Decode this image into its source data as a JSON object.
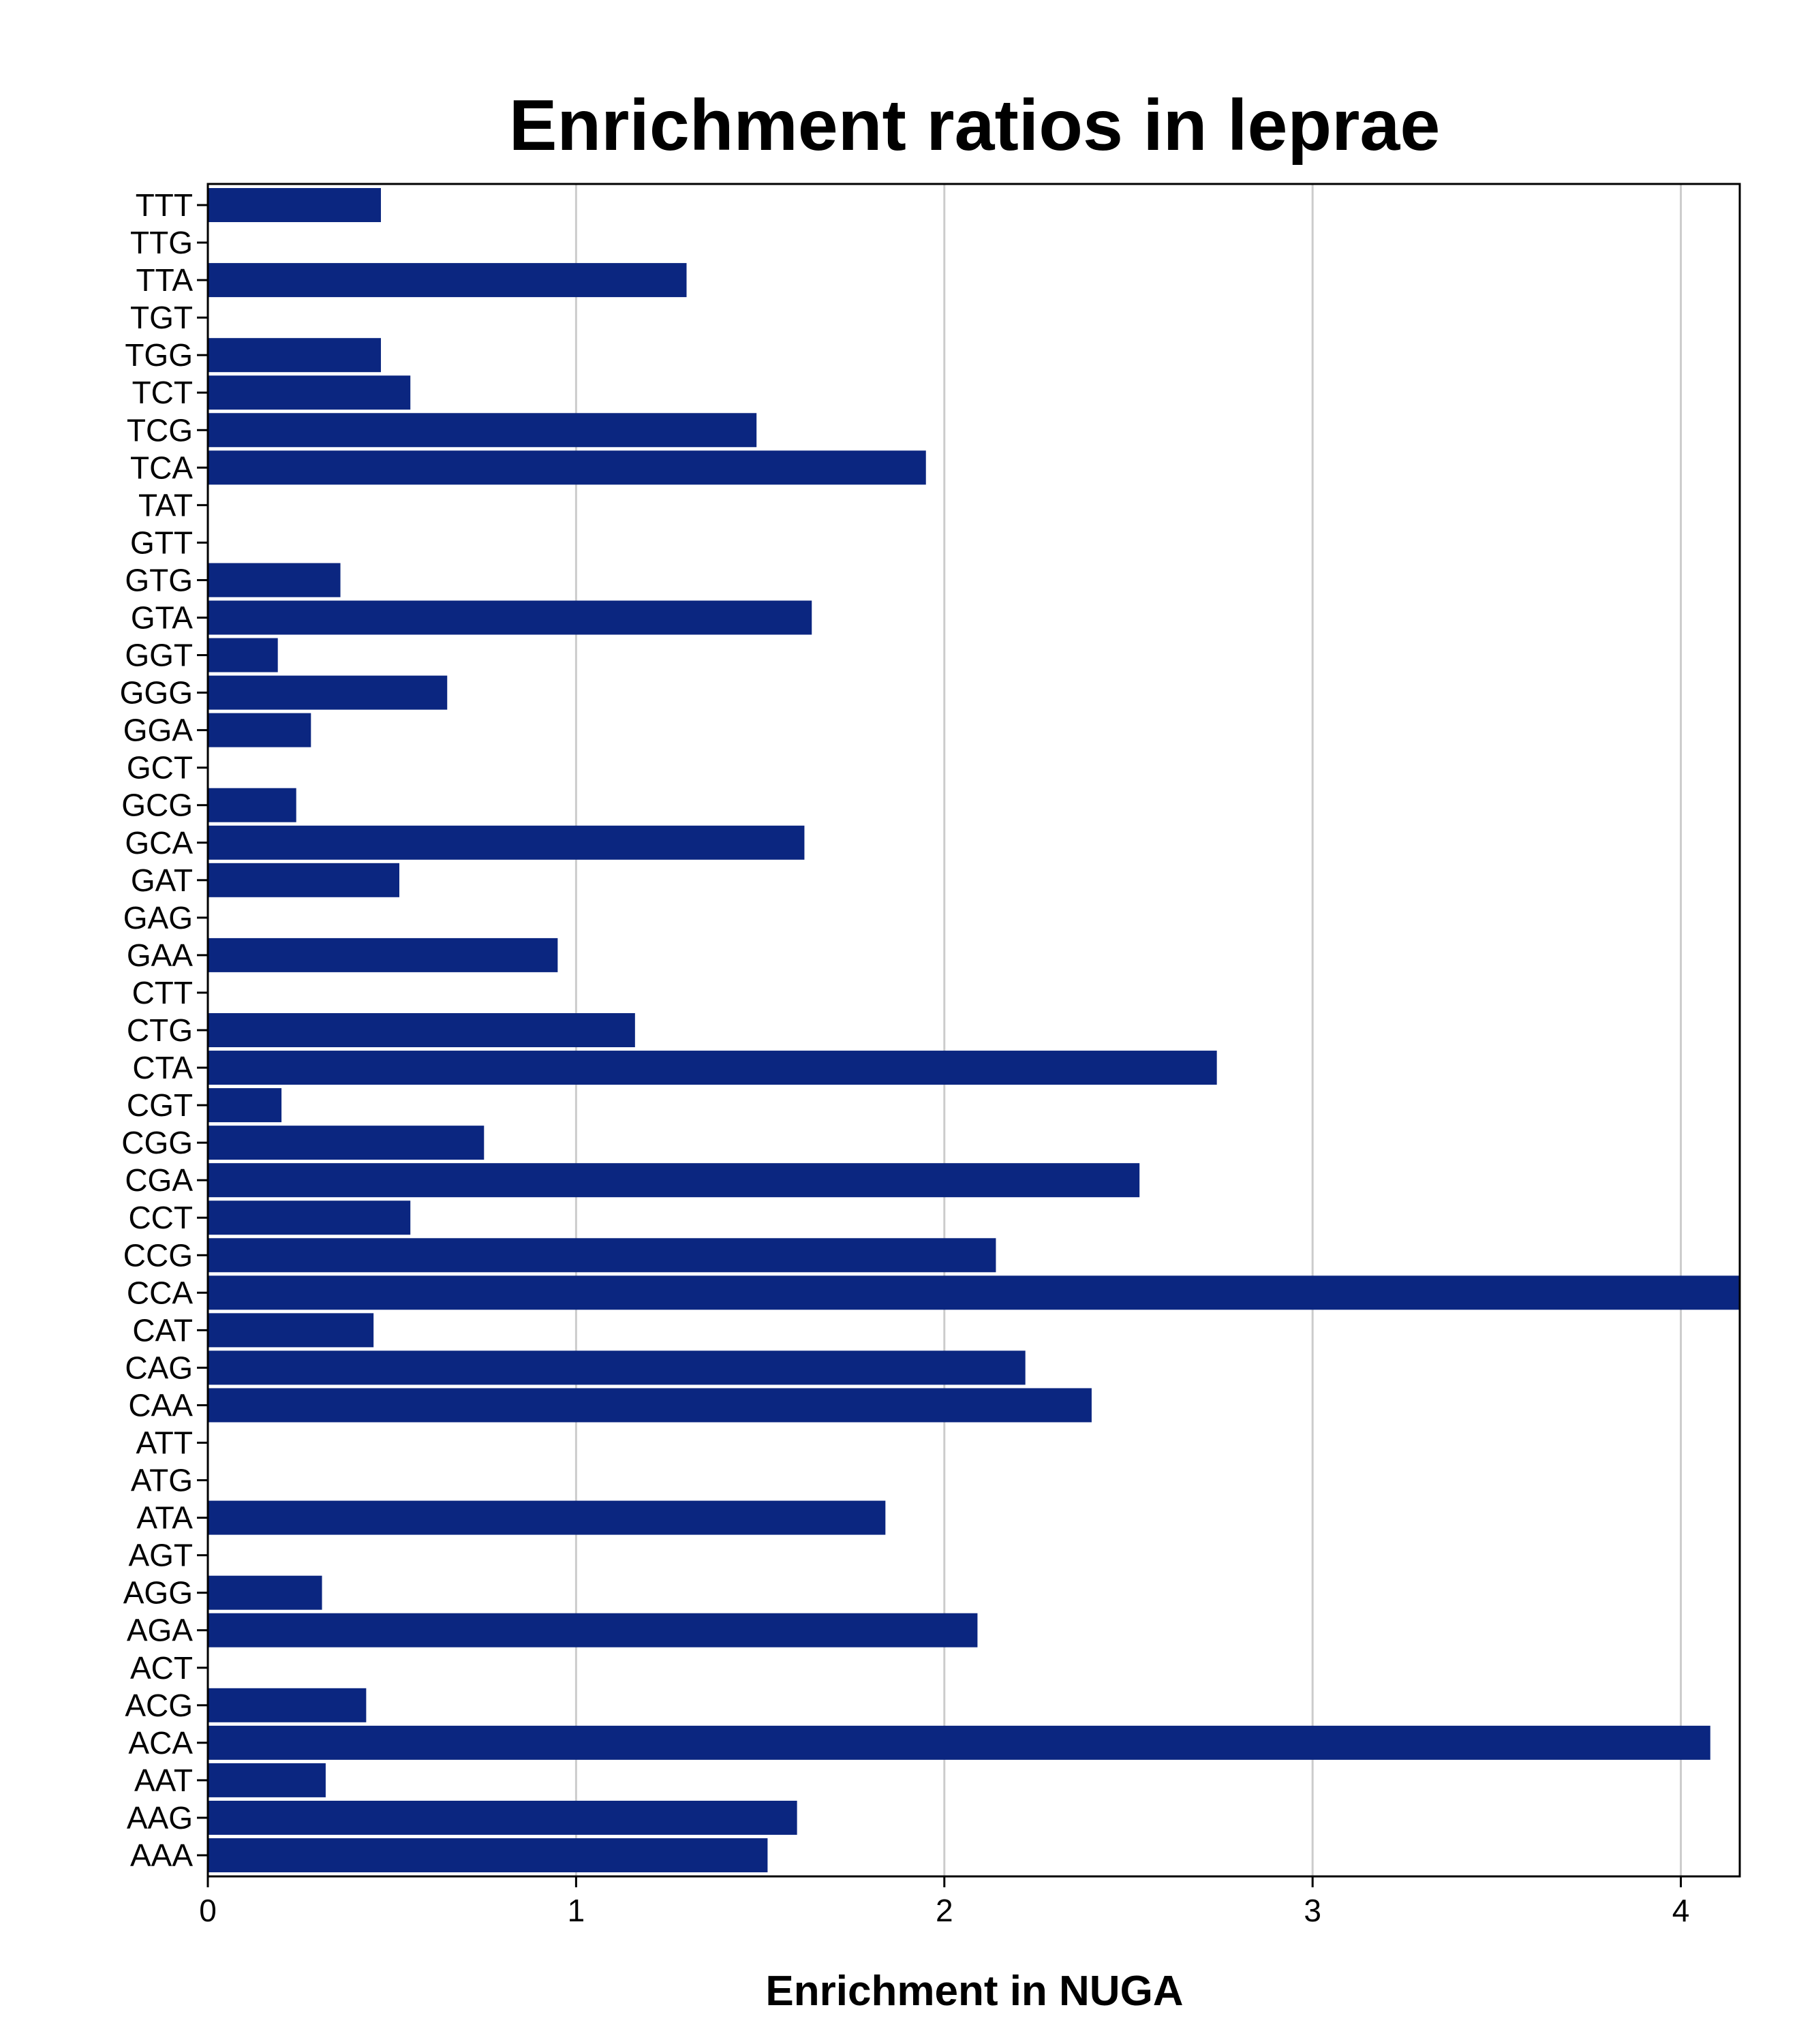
{
  "chart_data": {
    "type": "bar",
    "orientation": "horizontal",
    "title": "Enrichment ratios in leprae",
    "xlabel": "Enrichment in NUGA",
    "ylabel": "",
    "xlim": [
      0,
      4.16
    ],
    "xticks": [
      0,
      1,
      2,
      3,
      4
    ],
    "grid": "vertical",
    "bar_color": "#0b2680",
    "grid_color": "#cccccc",
    "categories": [
      "TTT",
      "TTG",
      "TTA",
      "TGT",
      "TGG",
      "TCT",
      "TCG",
      "TCA",
      "TAT",
      "GTT",
      "GTG",
      "GTA",
      "GGT",
      "GGG",
      "GGA",
      "GCT",
      "GCG",
      "GCA",
      "GAT",
      "GAG",
      "GAA",
      "CTT",
      "CTG",
      "CTA",
      "CGT",
      "CGG",
      "CGA",
      "CCT",
      "CCG",
      "CCA",
      "CAT",
      "CAG",
      "CAA",
      "ATT",
      "ATG",
      "ATA",
      "AGT",
      "AGG",
      "AGA",
      "ACT",
      "ACG",
      "ACA",
      "AAT",
      "AAG",
      "AAA"
    ],
    "values": [
      0.47,
      0,
      1.3,
      0,
      0.47,
      0.55,
      1.49,
      1.95,
      0,
      0,
      0.36,
      1.64,
      0.19,
      0.65,
      0.28,
      0,
      0.24,
      1.62,
      0.52,
      0,
      0.95,
      0,
      1.16,
      2.74,
      0.2,
      0.75,
      2.53,
      0.55,
      2.14,
      4.16,
      0.45,
      2.22,
      2.4,
      0,
      0,
      1.84,
      0,
      0.31,
      2.09,
      0,
      0.43,
      4.08,
      0.32,
      1.6,
      1.52
    ]
  }
}
